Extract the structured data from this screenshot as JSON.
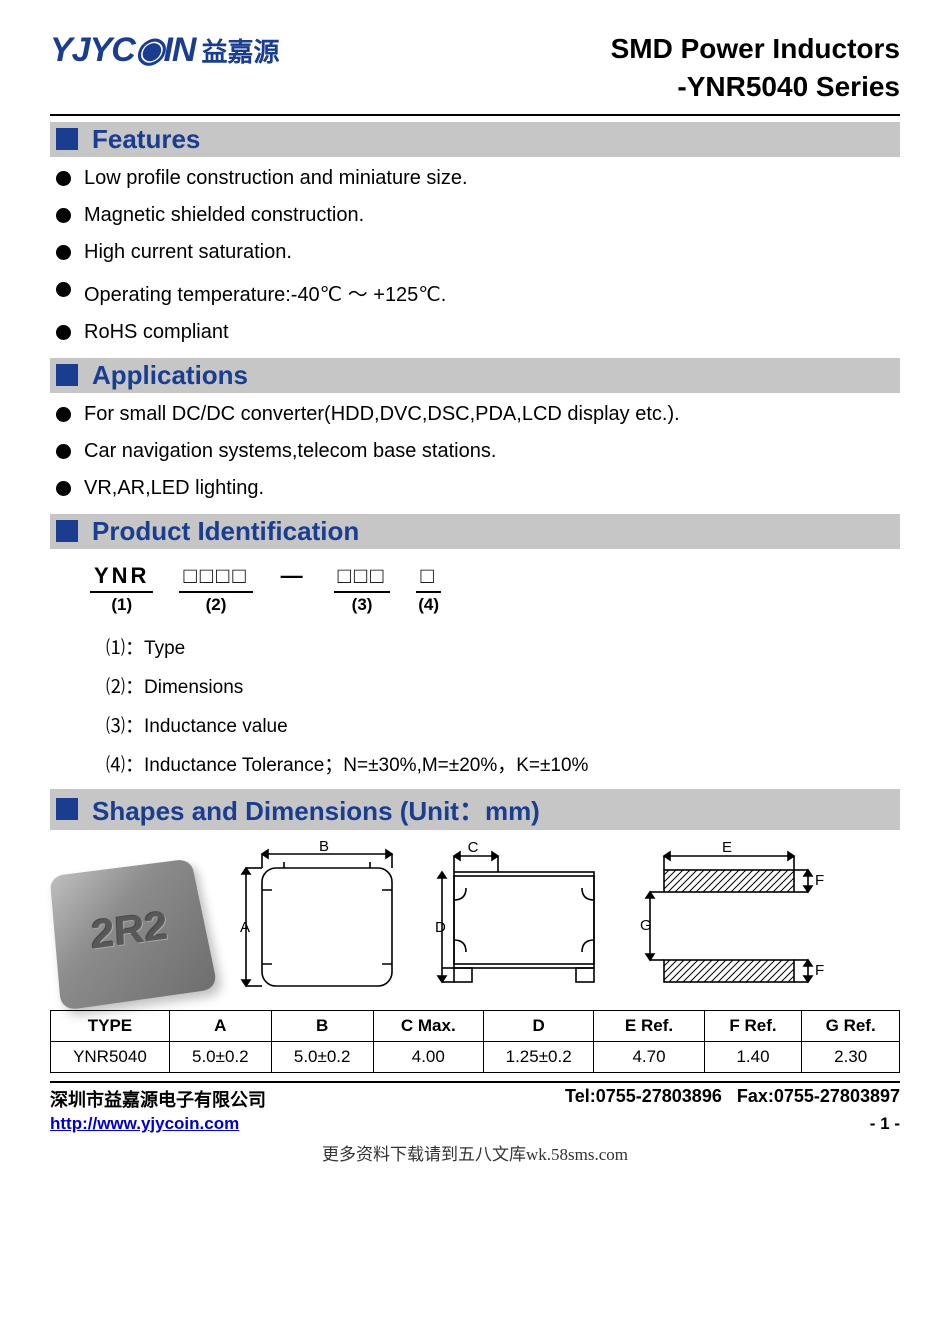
{
  "logo": {
    "english": "YJYC◉IN",
    "chinese": "益嘉源"
  },
  "docTitle": {
    "line1": "SMD Power Inductors",
    "line2": "-YNR5040 Series"
  },
  "sections": {
    "features": {
      "title": "Features",
      "items": [
        "Low profile construction and miniature size.",
        "Magnetic shielded construction.",
        "High current saturation.",
        "Operating temperature:-40℃ ～ +125℃.",
        "RoHS compliant"
      ]
    },
    "applications": {
      "title": "Applications",
      "items": [
        "For small DC/DC converter(HDD,DVC,DSC,PDA,LCD display etc.).",
        "Car navigation systems,telecom base stations.",
        "VR,AR,LED lighting."
      ]
    },
    "productId": {
      "title": "Product Identification",
      "parts": [
        {
          "top": "YNR",
          "bot": "(1)"
        },
        {
          "top": "□□□□",
          "bot": "(2)"
        },
        {
          "dash": "—"
        },
        {
          "top": "□□□",
          "bot": "(3)"
        },
        {
          "top": "□",
          "bot": "(4)"
        }
      ],
      "legend": [
        {
          "num": "⑴",
          "text": "：Type"
        },
        {
          "num": "⑵",
          "text": "：Dimensions"
        },
        {
          "num": "⑶",
          "text": "：Inductance value"
        },
        {
          "num": "⑷",
          "text": "：Inductance Tolerance；N=±30%,M=±20%，K=±10%"
        }
      ]
    },
    "shapes": {
      "title": "Shapes and Dimensions (Unit：mm)"
    }
  },
  "photo": {
    "engrave": "2R2"
  },
  "diagramLabels": {
    "A": "A",
    "B": "B",
    "C": "C",
    "D": "D",
    "E": "E",
    "F": "F",
    "G": "G"
  },
  "dimTable": {
    "headers": [
      "TYPE",
      "A",
      "B",
      "C Max.",
      "D",
      "E Ref.",
      "F Ref.",
      "G Ref."
    ],
    "rows": [
      [
        "YNR5040",
        "5.0±0.2",
        "5.0±0.2",
        "4.00",
        "1.25±0.2",
        "4.70",
        "1.40",
        "2.30"
      ]
    ],
    "colWidths": [
      "14%",
      "12%",
      "12%",
      "13%",
      "13%",
      "13%",
      "11.5%",
      "11.5%"
    ]
  },
  "footer": {
    "company": "深圳市益嘉源电子有限公司",
    "tel": "Tel:0755-27803896",
    "fax": "Fax:0755-27803897",
    "url": "http://www.yjycoin.com",
    "page": "- 1 -",
    "note": "更多资料下载请到五八文库wk.58sms.com"
  },
  "colors": {
    "brandBlue": "#1a3d8f",
    "sectionBg": "#c6c6c6",
    "link": "#0000cc"
  }
}
